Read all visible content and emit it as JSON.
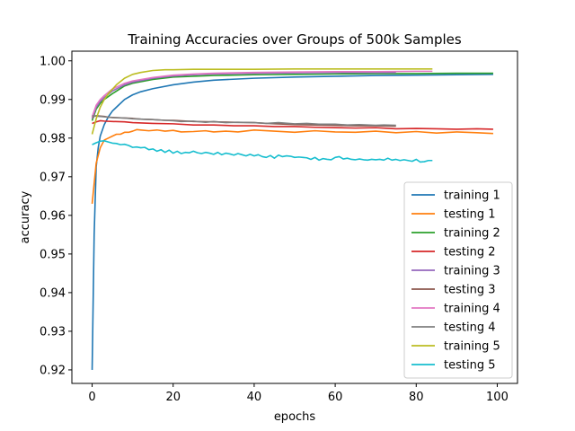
{
  "chart_data": {
    "type": "line",
    "title": "Training Accuracies over Groups of 500k Samples",
    "xlabel": "epochs",
    "ylabel": "accuracy",
    "xlim": [
      -5,
      105
    ],
    "ylim": [
      0.9165,
      1.0025
    ],
    "xticks": [
      0,
      20,
      40,
      60,
      80,
      100
    ],
    "yticks": [
      0.92,
      0.93,
      0.94,
      0.95,
      0.96,
      0.97,
      0.98,
      0.99,
      1.0
    ],
    "xtick_labels": [
      "0",
      "20",
      "40",
      "60",
      "80",
      "100"
    ],
    "ytick_labels": [
      "0.92",
      "0.93",
      "0.94",
      "0.95",
      "0.96",
      "0.97",
      "0.98",
      "0.99",
      "1.00"
    ],
    "grid": false,
    "legend_position": "lower-right",
    "series": [
      {
        "name": "training 1",
        "color": "#1f77b4",
        "x": [
          0,
          0.5,
          1,
          1.5,
          2,
          3,
          4,
          5,
          6,
          8,
          10,
          12,
          15,
          20,
          25,
          30,
          40,
          50,
          60,
          70,
          80,
          90,
          99
        ],
        "y": [
          0.92,
          0.955,
          0.9725,
          0.9775,
          0.9805,
          0.9835,
          0.9855,
          0.987,
          0.988,
          0.99,
          0.9912,
          0.992,
          0.9928,
          0.9938,
          0.9945,
          0.995,
          0.9955,
          0.9958,
          0.996,
          0.9962,
          0.9963,
          0.9964,
          0.9965
        ]
      },
      {
        "name": "testing 1",
        "color": "#ff7f0e",
        "x": [
          0,
          1,
          2,
          3,
          4,
          5,
          6,
          7,
          8,
          9,
          10,
          11,
          12,
          14,
          16,
          18,
          20,
          22,
          25,
          28,
          30,
          33,
          36,
          40,
          45,
          50,
          55,
          60,
          65,
          70,
          75,
          80,
          85,
          90,
          95,
          99
        ],
        "y": [
          0.963,
          0.9735,
          0.9775,
          0.9795,
          0.98,
          0.9805,
          0.981,
          0.981,
          0.9815,
          0.9815,
          0.9818,
          0.9822,
          0.9821,
          0.9819,
          0.9821,
          0.9818,
          0.982,
          0.9816,
          0.9817,
          0.9819,
          0.9816,
          0.9818,
          0.9816,
          0.9821,
          0.9818,
          0.9815,
          0.9819,
          0.9816,
          0.9815,
          0.9818,
          0.9814,
          0.9817,
          0.9813,
          0.9816,
          0.9814,
          0.9812
        ]
      },
      {
        "name": "training 2",
        "color": "#2ca02c",
        "x": [
          0,
          1,
          2,
          3,
          5,
          8,
          10,
          15,
          20,
          30,
          40,
          50,
          60,
          70,
          80,
          90,
          99
        ],
        "y": [
          0.9845,
          0.9875,
          0.989,
          0.99,
          0.9915,
          0.9935,
          0.9942,
          0.9952,
          0.9958,
          0.9962,
          0.9964,
          0.9965,
          0.9966,
          0.9967,
          0.9967,
          0.9968,
          0.9968
        ]
      },
      {
        "name": "testing 2",
        "color": "#d62728",
        "x": [
          0,
          1,
          2,
          3,
          5,
          8,
          10,
          15,
          20,
          25,
          30,
          35,
          40,
          45,
          50,
          55,
          60,
          65,
          70,
          75,
          80,
          85,
          90,
          95,
          99
        ],
        "y": [
          0.9838,
          0.9842,
          0.9845,
          0.9844,
          0.9843,
          0.9842,
          0.984,
          0.9838,
          0.9837,
          0.9834,
          0.9834,
          0.9832,
          0.9832,
          0.983,
          0.983,
          0.9828,
          0.9827,
          0.9826,
          0.9827,
          0.9824,
          0.9825,
          0.9824,
          0.9823,
          0.9824,
          0.9823
        ]
      },
      {
        "name": "training 3",
        "color": "#9467bd",
        "x": [
          0,
          1,
          2,
          3,
          5,
          8,
          10,
          15,
          20,
          25,
          30,
          40,
          50,
          60,
          70,
          75
        ],
        "y": [
          0.985,
          0.988,
          0.9895,
          0.9905,
          0.9922,
          0.9938,
          0.9945,
          0.9955,
          0.9961,
          0.9964,
          0.9966,
          0.9968,
          0.9969,
          0.997,
          0.997,
          0.997
        ]
      },
      {
        "name": "testing 3",
        "color": "#8c564b",
        "x": [
          0,
          1,
          2,
          3,
          4,
          6,
          8,
          10,
          12,
          15,
          18,
          20,
          25,
          30,
          35,
          40,
          45,
          50,
          55,
          60,
          65,
          70,
          75
        ],
        "y": [
          0.9855,
          0.9858,
          0.9857,
          0.9856,
          0.9854,
          0.9853,
          0.9852,
          0.9851,
          0.9849,
          0.9848,
          0.9846,
          0.9846,
          0.9843,
          0.9842,
          0.9841,
          0.984,
          0.9837,
          0.9835,
          0.9834,
          0.9833,
          0.9832,
          0.9832,
          0.9831
        ]
      },
      {
        "name": "training 4",
        "color": "#e377c2",
        "x": [
          0,
          1,
          2,
          3,
          5,
          8,
          10,
          15,
          20,
          25,
          30,
          40,
          50,
          60,
          70,
          80,
          84
        ],
        "y": [
          0.9855,
          0.9885,
          0.99,
          0.991,
          0.9927,
          0.9942,
          0.9948,
          0.9957,
          0.9963,
          0.9966,
          0.9968,
          0.997,
          0.9971,
          0.9972,
          0.9972,
          0.9973,
          0.9973
        ]
      },
      {
        "name": "testing 4",
        "color": "#7f7f7f",
        "x": [
          0,
          1,
          2,
          3,
          5,
          8,
          10,
          12,
          15,
          18,
          20,
          22,
          25,
          28,
          30,
          33,
          36,
          40,
          43,
          46,
          50,
          53,
          56,
          60,
          63,
          66,
          70,
          72,
          75
        ],
        "y": [
          0.9858,
          0.9857,
          0.9856,
          0.9855,
          0.9853,
          0.9852,
          0.985,
          0.9849,
          0.9848,
          0.9846,
          0.9845,
          0.9843,
          0.9844,
          0.9841,
          0.9843,
          0.984,
          0.9841,
          0.984,
          0.9838,
          0.984,
          0.9837,
          0.9838,
          0.9836,
          0.9836,
          0.9834,
          0.9835,
          0.9833,
          0.9834,
          0.9833
        ]
      },
      {
        "name": "training 5",
        "color": "#bcbd22",
        "x": [
          0,
          1,
          2,
          3,
          4,
          6,
          8,
          10,
          12,
          15,
          18,
          20,
          25,
          30,
          40,
          50,
          60,
          70,
          80,
          84
        ],
        "y": [
          0.981,
          0.985,
          0.988,
          0.99,
          0.9915,
          0.9938,
          0.9955,
          0.9965,
          0.997,
          0.9975,
          0.9977,
          0.9977,
          0.9978,
          0.9978,
          0.9978,
          0.9979,
          0.9979,
          0.9979,
          0.9979,
          0.9979
        ]
      },
      {
        "name": "testing 5",
        "color": "#17becf",
        "x": [
          0,
          1,
          2,
          3,
          4,
          5,
          6,
          7,
          8,
          9,
          10,
          11,
          12,
          13,
          14,
          15,
          16,
          17,
          18,
          19,
          20,
          21,
          22,
          23,
          24,
          25,
          26,
          27,
          28,
          29,
          30,
          31,
          32,
          33,
          34,
          35,
          36,
          37,
          38,
          39,
          40,
          41,
          42,
          43,
          44,
          45,
          46,
          47,
          48,
          49,
          50,
          51,
          52,
          53,
          54,
          55,
          56,
          57,
          58,
          59,
          60,
          61,
          62,
          63,
          64,
          65,
          66,
          67,
          68,
          69,
          70,
          71,
          72,
          73,
          74,
          75,
          76,
          77,
          78,
          79,
          80,
          81,
          82,
          83,
          84
        ],
        "y": [
          0.9783,
          0.9788,
          0.9792,
          0.9793,
          0.979,
          0.9787,
          0.9786,
          0.9783,
          0.9784,
          0.9781,
          0.9776,
          0.9777,
          0.9775,
          0.9776,
          0.977,
          0.9772,
          0.9766,
          0.977,
          0.9763,
          0.9769,
          0.9761,
          0.9766,
          0.976,
          0.9763,
          0.9762,
          0.9766,
          0.9762,
          0.976,
          0.9763,
          0.9761,
          0.9758,
          0.9763,
          0.9757,
          0.9761,
          0.9759,
          0.9756,
          0.976,
          0.9757,
          0.9754,
          0.9758,
          0.9754,
          0.9757,
          0.9752,
          0.975,
          0.9755,
          0.9748,
          0.9756,
          0.9752,
          0.9754,
          0.9753,
          0.975,
          0.9751,
          0.975,
          0.9749,
          0.9745,
          0.975,
          0.9743,
          0.9747,
          0.9745,
          0.9744,
          0.975,
          0.9752,
          0.9746,
          0.9748,
          0.9745,
          0.9744,
          0.9746,
          0.9744,
          0.9743,
          0.9745,
          0.9744,
          0.9745,
          0.9743,
          0.9748,
          0.9743,
          0.9745,
          0.9742,
          0.9744,
          0.9742,
          0.974,
          0.9745,
          0.9738,
          0.9739,
          0.9742,
          0.9742
        ]
      }
    ]
  }
}
